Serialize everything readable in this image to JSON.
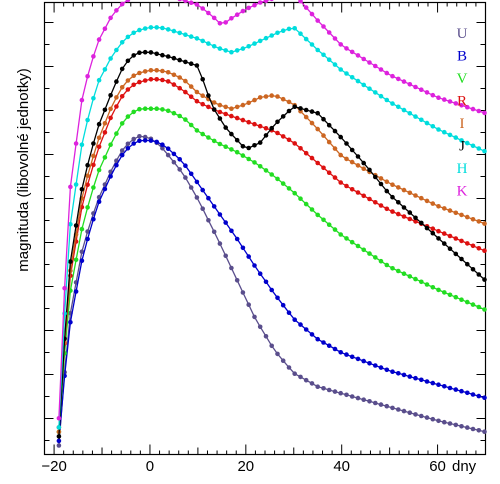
{
  "chart_data": {
    "type": "line",
    "title": "",
    "xlabel": "dny",
    "ylabel": "magnituda (libovolné jednotky)",
    "xlim": [
      -22,
      70
    ],
    "ylim": [
      0,
      100
    ],
    "x_ticks": [
      -20,
      0,
      20,
      40,
      60
    ],
    "x_tick_labels": [
      "−20",
      "0",
      "20",
      "40",
      "60"
    ],
    "y_axis_numeric_labels": false,
    "grid": false,
    "legend_position": "right",
    "series": [
      {
        "name": "U",
        "color": "#5a4e8c",
        "x": [
          -19,
          -17,
          -14,
          -11,
          -8,
          -6,
          -4,
          -2,
          0,
          2,
          4,
          7,
          10,
          14,
          18,
          22,
          26,
          30,
          35,
          40,
          50,
          60,
          70
        ],
        "y": [
          2,
          29,
          46,
          56,
          63,
          67,
          69.5,
          70.5,
          70,
          68.5,
          66,
          62,
          56.5,
          48,
          39,
          30,
          23,
          18,
          15,
          13.5,
          10.5,
          7.5,
          5
        ]
      },
      {
        "name": "B",
        "color": "#0000cc",
        "x": [
          -19,
          -17,
          -14,
          -11,
          -8,
          -6,
          -4,
          -2,
          0,
          2,
          4,
          7,
          10,
          14,
          18,
          22,
          26,
          30,
          35,
          40,
          50,
          60,
          70
        ],
        "y": [
          3,
          27,
          44,
          55,
          62,
          66,
          68.5,
          69.5,
          69.5,
          69,
          67.5,
          64.5,
          60,
          54,
          48,
          41.5,
          35.5,
          30,
          25.5,
          22.5,
          18.5,
          15.5,
          12.5
        ]
      },
      {
        "name": "V",
        "color": "#22dd22",
        "x": [
          -19,
          -17,
          -14,
          -11,
          -8,
          -6,
          -4,
          -2,
          0,
          2,
          4,
          7,
          10,
          14,
          18,
          22,
          26,
          30,
          35,
          40,
          50,
          60,
          70
        ],
        "y": [
          5,
          34,
          51,
          62,
          69,
          73,
          75.5,
          76.5,
          76.5,
          76.5,
          76,
          74.5,
          71.5,
          69,
          67,
          64.5,
          61.5,
          58,
          53,
          48.5,
          41.5,
          36.5,
          32
        ]
      },
      {
        "name": "R",
        "color": "#dd1111",
        "x": [
          -19,
          -17,
          -14,
          -11,
          -8,
          -6,
          -4,
          -2,
          0,
          2,
          4,
          7,
          10,
          14,
          18,
          22,
          26,
          30,
          35,
          40,
          50,
          60,
          70
        ],
        "y": [
          6,
          37,
          56,
          67,
          75,
          79,
          81.5,
          82.5,
          83,
          83,
          82.5,
          80.5,
          78,
          76,
          74.5,
          73,
          71.5,
          69,
          64.5,
          60,
          54,
          49.5,
          45
        ]
      },
      {
        "name": "I",
        "color": "#cc6622",
        "x": [
          -19,
          -17,
          -14,
          -11,
          -8,
          -6,
          -4,
          -2,
          0,
          2,
          4,
          7,
          10,
          14,
          17,
          20,
          23,
          26,
          30,
          35,
          40,
          50,
          60,
          70
        ],
        "y": [
          5,
          38,
          58,
          69,
          77,
          81,
          83.5,
          84.5,
          85,
          85,
          84.5,
          83,
          80,
          77.5,
          76.5,
          77.5,
          79,
          79.5,
          77.5,
          72,
          66,
          60,
          55,
          51
        ]
      },
      {
        "name": "J",
        "color": "#000000",
        "x": [
          -19,
          -17,
          -14,
          -11,
          -8,
          -6,
          -4,
          -2,
          0,
          2,
          4,
          7,
          10,
          13,
          16,
          20,
          23,
          26,
          30,
          35,
          40,
          45,
          50,
          60,
          70
        ],
        "y": [
          4,
          40,
          60,
          72,
          80,
          85,
          88,
          89,
          89,
          88.5,
          88,
          87,
          86,
          77,
          72,
          67.5,
          69,
          73,
          77,
          75.5,
          70,
          64,
          57.5,
          48,
          38.5
        ]
      },
      {
        "name": "H",
        "color": "#00dddd",
        "x": [
          -19,
          -17,
          -14,
          -11,
          -8,
          -6,
          -4,
          -2,
          0,
          2,
          4,
          7,
          10,
          14,
          17,
          20,
          24,
          27,
          30,
          35,
          40,
          50,
          60,
          70
        ],
        "y": [
          6,
          48,
          70,
          82,
          88,
          91,
          93,
          94,
          94.5,
          94.5,
          94,
          93,
          92,
          90,
          89,
          90,
          92,
          93.5,
          94.5,
          89.5,
          85,
          78,
          72,
          67
        ]
      },
      {
        "name": "K",
        "color": "#dd22dd",
        "x": [
          -19,
          -17,
          -14,
          -11,
          -8,
          -6,
          -4,
          -2,
          0,
          2,
          4,
          7,
          10,
          13,
          15,
          17,
          20,
          23,
          26,
          30,
          35,
          40,
          50,
          60,
          70
        ],
        "y": [
          8,
          56,
          80,
          91,
          97,
          99.5,
          101,
          102,
          102.5,
          102,
          101.5,
          100.5,
          99.5,
          97,
          95,
          96.5,
          98.5,
          100,
          101,
          102,
          96,
          90.5,
          84,
          79,
          75.5
        ]
      }
    ]
  }
}
